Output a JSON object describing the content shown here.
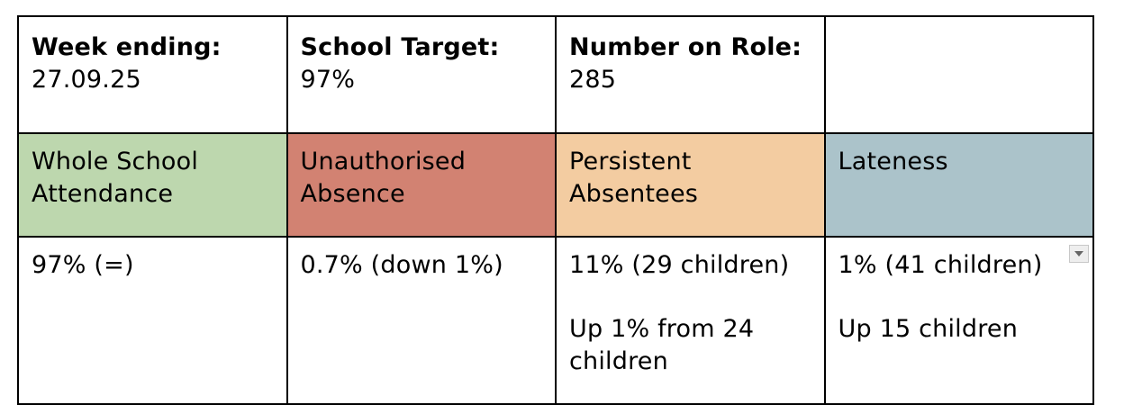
{
  "header": {
    "week_label": "Week ending:",
    "week_value": "27.09.25",
    "target_label": "School Target:",
    "target_value": "97%",
    "roll_label": "Number on Role:",
    "roll_value": "285"
  },
  "categories": [
    {
      "title_line1": "Whole School",
      "title_line2": "Attendance",
      "color": "#bdd7ae",
      "value_line1": "97% (=)",
      "value_line2": ""
    },
    {
      "title_line1": "Unauthorised",
      "title_line2": "Absence",
      "color": "#d28272",
      "value_line1": "0.7% (down 1%)",
      "value_line2": ""
    },
    {
      "title_line1": "Persistent",
      "title_line2": "Absentees",
      "color": "#f3cca1",
      "value_line1": "11% (29 children)",
      "value_line2": "Up 1% from 24 children"
    },
    {
      "title_line1": "Lateness",
      "title_line2": "",
      "color": "#abc3ca",
      "value_line1": "1% (41 children)",
      "value_line2": "Up 15 children"
    }
  ],
  "dropdown_icon": "chevron-down-icon"
}
